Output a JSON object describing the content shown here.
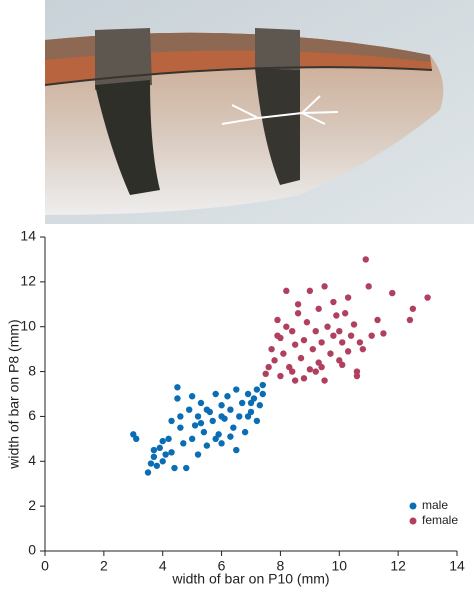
{
  "chart_data": {
    "type": "scatter",
    "xlabel": "width of bar on P10 (mm)",
    "ylabel": "width of bar on P8 (mm)",
    "xlim": [
      0,
      14
    ],
    "xticks": [
      0,
      2,
      4,
      6,
      8,
      10,
      12,
      14
    ],
    "ylim": [
      0,
      14
    ],
    "yticks": [
      0,
      2,
      4,
      6,
      8,
      10,
      12,
      14
    ],
    "legend": "lower right",
    "series": [
      {
        "name": "male",
        "color": "#0b6db3",
        "x": [
          3.0,
          3.1,
          3.5,
          3.6,
          3.7,
          3.8,
          3.9,
          4.0,
          4.1,
          4.2,
          4.3,
          4.3,
          4.4,
          4.5,
          4.5,
          4.6,
          4.7,
          4.8,
          4.9,
          5.0,
          5.1,
          5.2,
          5.2,
          5.3,
          5.4,
          5.5,
          5.6,
          5.7,
          5.8,
          5.9,
          6.0,
          6.0,
          6.1,
          6.2,
          6.3,
          6.4,
          6.5,
          6.5,
          6.6,
          6.7,
          6.8,
          6.9,
          7.0,
          7.1,
          7.2,
          7.3,
          7.4,
          7.4,
          7.2,
          6.3,
          5.0,
          5.5,
          4.0,
          3.7,
          6.0,
          4.6,
          5.8,
          6.9,
          7.0,
          5.3
        ],
        "values": [
          5.2,
          5.0,
          3.5,
          3.9,
          4.2,
          3.8,
          4.6,
          4.0,
          4.3,
          5.0,
          5.8,
          4.4,
          3.7,
          6.8,
          7.3,
          5.5,
          4.8,
          3.7,
          6.3,
          5.0,
          5.6,
          6.0,
          4.3,
          6.6,
          5.3,
          4.7,
          6.2,
          5.8,
          7.0,
          5.2,
          6.5,
          4.8,
          5.9,
          6.9,
          6.3,
          5.5,
          7.2,
          4.5,
          6.0,
          6.6,
          5.3,
          7.0,
          6.2,
          6.8,
          7.2,
          6.5,
          7.0,
          7.4,
          5.8,
          5.1,
          6.9,
          6.3,
          4.9,
          4.5,
          6.0,
          6.0,
          5.0,
          6.0,
          6.6,
          5.7
        ]
      },
      {
        "name": "female",
        "color": "#b1405f",
        "x": [
          7.5,
          7.6,
          7.7,
          7.8,
          7.9,
          8.0,
          8.0,
          8.1,
          8.2,
          8.2,
          8.3,
          8.4,
          8.5,
          8.5,
          8.6,
          8.7,
          8.8,
          8.8,
          8.9,
          9.0,
          9.0,
          9.1,
          9.2,
          9.3,
          9.3,
          9.4,
          9.5,
          9.5,
          9.6,
          9.7,
          9.8,
          9.8,
          9.9,
          10.0,
          10.0,
          10.1,
          10.2,
          10.3,
          10.3,
          10.4,
          10.5,
          10.6,
          10.6,
          10.7,
          10.8,
          10.9,
          11.0,
          11.1,
          11.3,
          11.5,
          11.8,
          12.4,
          12.5,
          13.0,
          7.9,
          8.4,
          9.4,
          10.1,
          8.6,
          9.2
        ],
        "values": [
          7.9,
          8.2,
          9.0,
          8.5,
          10.3,
          7.8,
          9.5,
          8.8,
          10.0,
          11.6,
          8.2,
          9.8,
          7.6,
          9.2,
          10.6,
          8.6,
          9.4,
          7.7,
          10.2,
          8.1,
          11.6,
          9.0,
          9.8,
          8.4,
          10.8,
          9.3,
          7.6,
          11.8,
          10.0,
          8.8,
          9.6,
          11.1,
          10.5,
          8.5,
          9.8,
          9.3,
          10.6,
          8.9,
          11.3,
          9.6,
          10.1,
          8.0,
          7.8,
          9.3,
          9.0,
          13.0,
          11.8,
          9.6,
          10.3,
          9.7,
          11.5,
          10.3,
          10.8,
          11.3,
          9.6,
          8.0,
          8.2,
          8.3,
          11.0,
          8.0
        ]
      }
    ]
  }
}
